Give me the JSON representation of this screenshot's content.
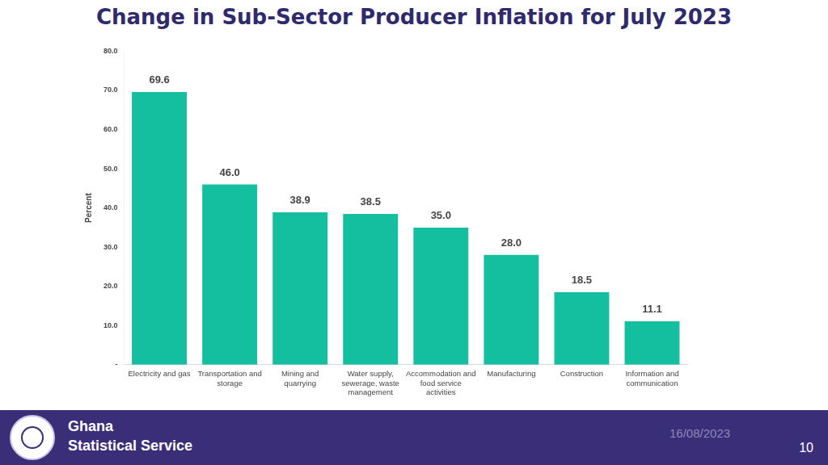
{
  "chart_data": {
    "type": "bar",
    "title": "Change in Sub-Sector Producer Inflation for July 2023",
    "y_label": "Percent",
    "categories": [
      "Electricity and gas",
      "Transportation and storage",
      "Mining and quarrying",
      "Water supply, sewerage, waste management",
      "Accommodation and food service activities",
      "Manufacturing",
      "Construction",
      "Information and communication"
    ],
    "values": [
      69.6,
      46.0,
      38.9,
      38.5,
      35.0,
      28.0,
      18.5,
      11.1
    ],
    "value_labels": [
      "69.6",
      "46.0",
      "38.9",
      "38.5",
      "35.0",
      "28.0",
      "18.5",
      "11.1"
    ],
    "color": "#14bf9f",
    "ylim": [
      0,
      80
    ],
    "yticks": [
      {
        "value": 0,
        "label": "-"
      },
      {
        "value": 10,
        "label": "10.0"
      },
      {
        "value": 20,
        "label": "20.0"
      },
      {
        "value": 30,
        "label": "30.0"
      },
      {
        "value": 40,
        "label": "40.0"
      },
      {
        "value": 50,
        "label": "50.0"
      },
      {
        "value": 60,
        "label": "60.0"
      },
      {
        "value": 70,
        "label": "70.0"
      },
      {
        "value": 80,
        "label": "80.0"
      }
    ],
    "grid": false,
    "data_labels": true
  },
  "footer": {
    "organization": [
      "Ghana",
      "Statistical Service"
    ],
    "date": "16/08/2023",
    "page": "10"
  }
}
